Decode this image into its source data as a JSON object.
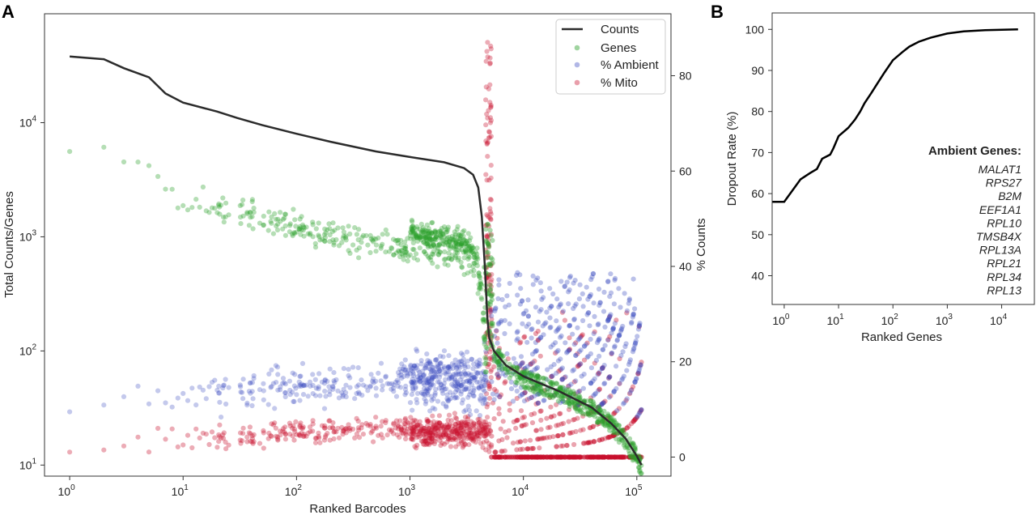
{
  "panels": {
    "a": "A",
    "b": "B"
  },
  "chart_data": [
    {
      "type": "scatter",
      "panel": "A",
      "xlabel": "Ranked Barcodes",
      "ylabel": "Total Counts/Genes",
      "y2label": "% Counts",
      "xscale": "log",
      "yscale": "log",
      "xlim": [
        0.6,
        200000
      ],
      "ylim": [
        8,
        90000
      ],
      "y2lim": [
        -4,
        93
      ],
      "x_ticks": [
        {
          "base": "10",
          "exp": "0",
          "v": 1
        },
        {
          "base": "10",
          "exp": "1",
          "v": 10
        },
        {
          "base": "10",
          "exp": "2",
          "v": 100
        },
        {
          "base": "10",
          "exp": "3",
          "v": 1000
        },
        {
          "base": "10",
          "exp": "4",
          "v": 10000
        },
        {
          "base": "10",
          "exp": "5",
          "v": 100000
        }
      ],
      "y_ticks": [
        {
          "base": "10",
          "exp": "1",
          "v": 10
        },
        {
          "base": "10",
          "exp": "2",
          "v": 100
        },
        {
          "base": "10",
          "exp": "3",
          "v": 1000
        },
        {
          "base": "10",
          "exp": "4",
          "v": 10000
        }
      ],
      "y2_ticks": [
        0,
        20,
        40,
        60,
        80
      ],
      "legend_position": "top-right",
      "series": [
        {
          "name": "Counts",
          "kind": "line",
          "color": "#2b2b2b",
          "x": [
            1,
            2,
            3,
            5,
            7,
            10,
            20,
            30,
            50,
            100,
            200,
            500,
            1000,
            2000,
            3000,
            3600,
            4000,
            4300,
            4600,
            4800,
            5000,
            5500,
            7000,
            10000,
            20000,
            40000,
            60000,
            80000,
            100000,
            110000
          ],
          "y": [
            38000,
            36000,
            30000,
            25000,
            18000,
            15000,
            12500,
            11000,
            9500,
            8000,
            6800,
            5600,
            5000,
            4500,
            4000,
            3500,
            2700,
            1500,
            500,
            200,
            130,
            100,
            75,
            60,
            45,
            32,
            23,
            17,
            12,
            10
          ]
        },
        {
          "name": "Genes",
          "kind": "points",
          "color": "#2ca02c",
          "x_range": [
            1,
            110000
          ],
          "y_range": [
            10,
            5200
          ]
        },
        {
          "name": "% Ambient",
          "kind": "points",
          "color": "#3b4cc0",
          "axis": "right",
          "x_range": [
            1,
            110000
          ],
          "y_range": [
            0,
            66
          ]
        },
        {
          "name": "% Mito",
          "kind": "points",
          "color": "#c8102e",
          "axis": "right",
          "x_range": [
            1,
            110000
          ],
          "y_range": [
            0,
            87
          ]
        }
      ]
    },
    {
      "type": "line",
      "panel": "B",
      "xlabel": "Ranked Genes",
      "ylabel": "Dropout Rate (%)",
      "xscale": "log",
      "xlim": [
        0.6,
        40000
      ],
      "ylim": [
        33,
        104
      ],
      "x_ticks": [
        {
          "base": "10",
          "exp": "0",
          "v": 1
        },
        {
          "base": "10",
          "exp": "1",
          "v": 10
        },
        {
          "base": "10",
          "exp": "2",
          "v": 100
        },
        {
          "base": "10",
          "exp": "3",
          "v": 1000
        },
        {
          "base": "10",
          "exp": "4",
          "v": 10000
        }
      ],
      "y_ticks": [
        40,
        50,
        60,
        70,
        80,
        90,
        100
      ],
      "series": [
        {
          "color": "#000000",
          "x": [
            0.6,
            1,
            2,
            3,
            4,
            5,
            7,
            8,
            10,
            15,
            20,
            25,
            30,
            40,
            50,
            70,
            100,
            150,
            200,
            300,
            500,
            1000,
            2000,
            5000,
            10000,
            20000
          ],
          "y": [
            58,
            58,
            63.5,
            65,
            66,
            68.5,
            69.5,
            71,
            74,
            76,
            78,
            80,
            82,
            84.5,
            86.5,
            89.5,
            92.5,
            94.5,
            95.8,
            97,
            98,
            99,
            99.5,
            99.8,
            99.9,
            100
          ]
        }
      ],
      "annotation": {
        "title": "Ambient Genes:",
        "genes": [
          "MALAT1",
          "RPS27",
          "B2M",
          "EEF1A1",
          "RPL10",
          "TMSB4X",
          "RPL13A",
          "RPL21",
          "RPL34",
          "RPL13"
        ]
      }
    }
  ]
}
